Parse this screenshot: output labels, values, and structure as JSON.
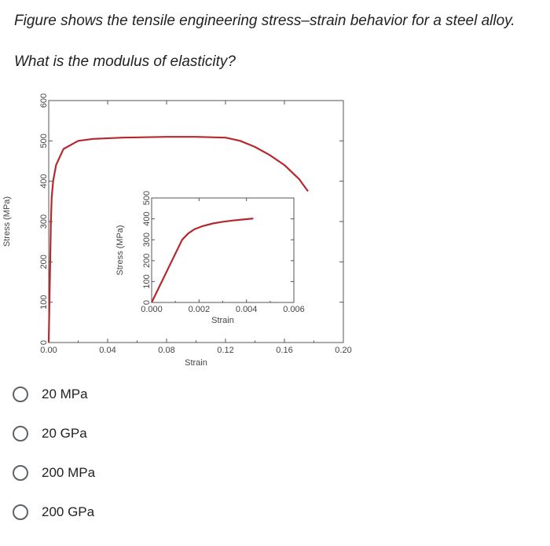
{
  "question": {
    "line1": "Figure shows the tensile engineering stress–strain behavior for a steel alloy.",
    "line2": "What is the modulus of elasticity?"
  },
  "chart_data": [
    {
      "type": "line",
      "title": "",
      "xlabel": "Strain",
      "ylabel": "Stress (MPa)",
      "xlim": [
        0,
        0.2
      ],
      "ylim": [
        0,
        600
      ],
      "x_ticks": [
        "0.00",
        "0.04",
        "0.08",
        "0.12",
        "0.16",
        "0.20"
      ],
      "y_ticks": [
        "0",
        "100",
        "200",
        "300",
        "400",
        "500",
        "600"
      ],
      "curve_color": "#b5282e",
      "series": [
        {
          "x": [
            0,
            0.0008,
            0.0015,
            0.002,
            0.003,
            0.005,
            0.01,
            0.02,
            0.03,
            0.05,
            0.08,
            0.1,
            0.12,
            0.13,
            0.14,
            0.15,
            0.16,
            0.17,
            0.176
          ],
          "y": [
            0,
            160,
            300,
            360,
            400,
            440,
            480,
            500,
            505,
            508,
            510,
            510,
            508,
            500,
            485,
            465,
            440,
            405,
            375
          ]
        }
      ]
    },
    {
      "type": "line",
      "title": "",
      "xlabel": "Strain",
      "ylabel": "Stress (MPa)",
      "xlim": [
        0,
        0.007
      ],
      "ylim": [
        0,
        500
      ],
      "x_ticks": [
        "0.000",
        "0.002",
        "0.004",
        "0.006"
      ],
      "y_ticks": [
        "0",
        "100",
        "200",
        "300",
        "400",
        "500"
      ],
      "curve_color": "#b5282e",
      "series": [
        {
          "x": [
            0,
            0.0015,
            0.0018,
            0.0021,
            0.0025,
            0.003,
            0.0035,
            0.004,
            0.0045,
            0.005
          ],
          "y": [
            0,
            300,
            330,
            350,
            365,
            378,
            386,
            392,
            397,
            402
          ]
        }
      ]
    }
  ],
  "options": [
    {
      "label": "20 MPa"
    },
    {
      "label": "20 GPa"
    },
    {
      "label": "200 MPa"
    },
    {
      "label": "200 GPa"
    }
  ]
}
